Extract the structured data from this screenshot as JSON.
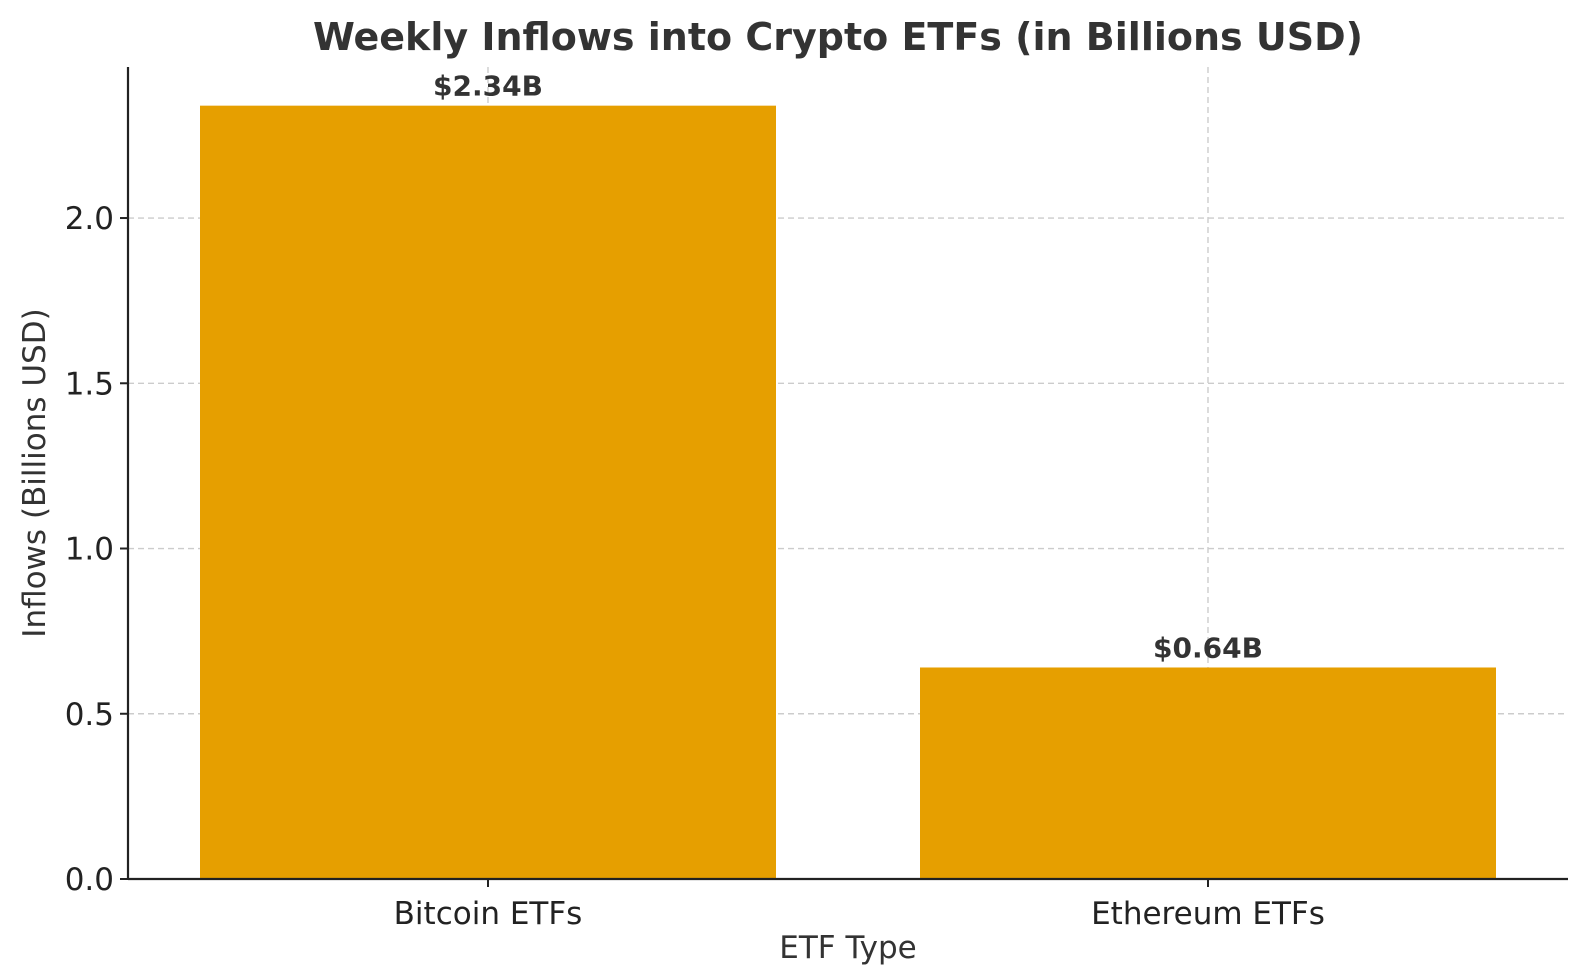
{
  "chart_data": {
    "type": "bar",
    "title": "Weekly Inflows into Crypto ETFs (in Billions USD)",
    "xlabel": "ETF Type",
    "ylabel": "Inflows (Billions USD)",
    "categories": [
      "Bitcoin ETFs",
      "Ethereum ETFs"
    ],
    "values": [
      2.34,
      0.64
    ],
    "data_labels": [
      "$2.34B",
      "$0.64B"
    ],
    "ylim": [
      0,
      2.457
    ],
    "yticks": [
      0.0,
      0.5,
      1.0,
      1.5,
      2.0
    ],
    "ytick_labels": [
      "0.0",
      "0.5",
      "1.0",
      "1.5",
      "2.0"
    ],
    "bar_color": "#E69F00",
    "grid": true,
    "legend": "none"
  }
}
